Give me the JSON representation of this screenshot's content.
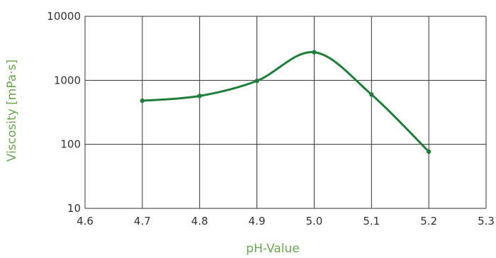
{
  "chart_data": {
    "type": "line",
    "xlabel": "pH-Value",
    "ylabel": "Viscosity [mPa·s]",
    "xlim": [
      4.6,
      5.3
    ],
    "ylim": [
      10,
      10000
    ],
    "yscale": "log",
    "grid": true,
    "xticks": [
      4.6,
      4.7,
      4.8,
      4.9,
      5.0,
      5.1,
      5.2,
      5.3
    ],
    "xtick_labels": [
      "4.6",
      "4.7",
      "4.8",
      "4.9",
      "5.0",
      "5.1",
      "5.2",
      "5.3"
    ],
    "yticks": [
      10,
      100,
      1000,
      10000
    ],
    "ytick_labels": [
      "10",
      "100",
      "1000",
      "10000"
    ],
    "series": [
      {
        "x": [
          4.7,
          4.8,
          4.9,
          5.0,
          5.1,
          5.2
        ],
        "y": [
          480,
          570,
          980,
          2750,
          600,
          77
        ]
      }
    ],
    "colors": {
      "line": "#1e7e3a",
      "axis_labels": "#6aa84f",
      "grid": "#333333"
    }
  }
}
